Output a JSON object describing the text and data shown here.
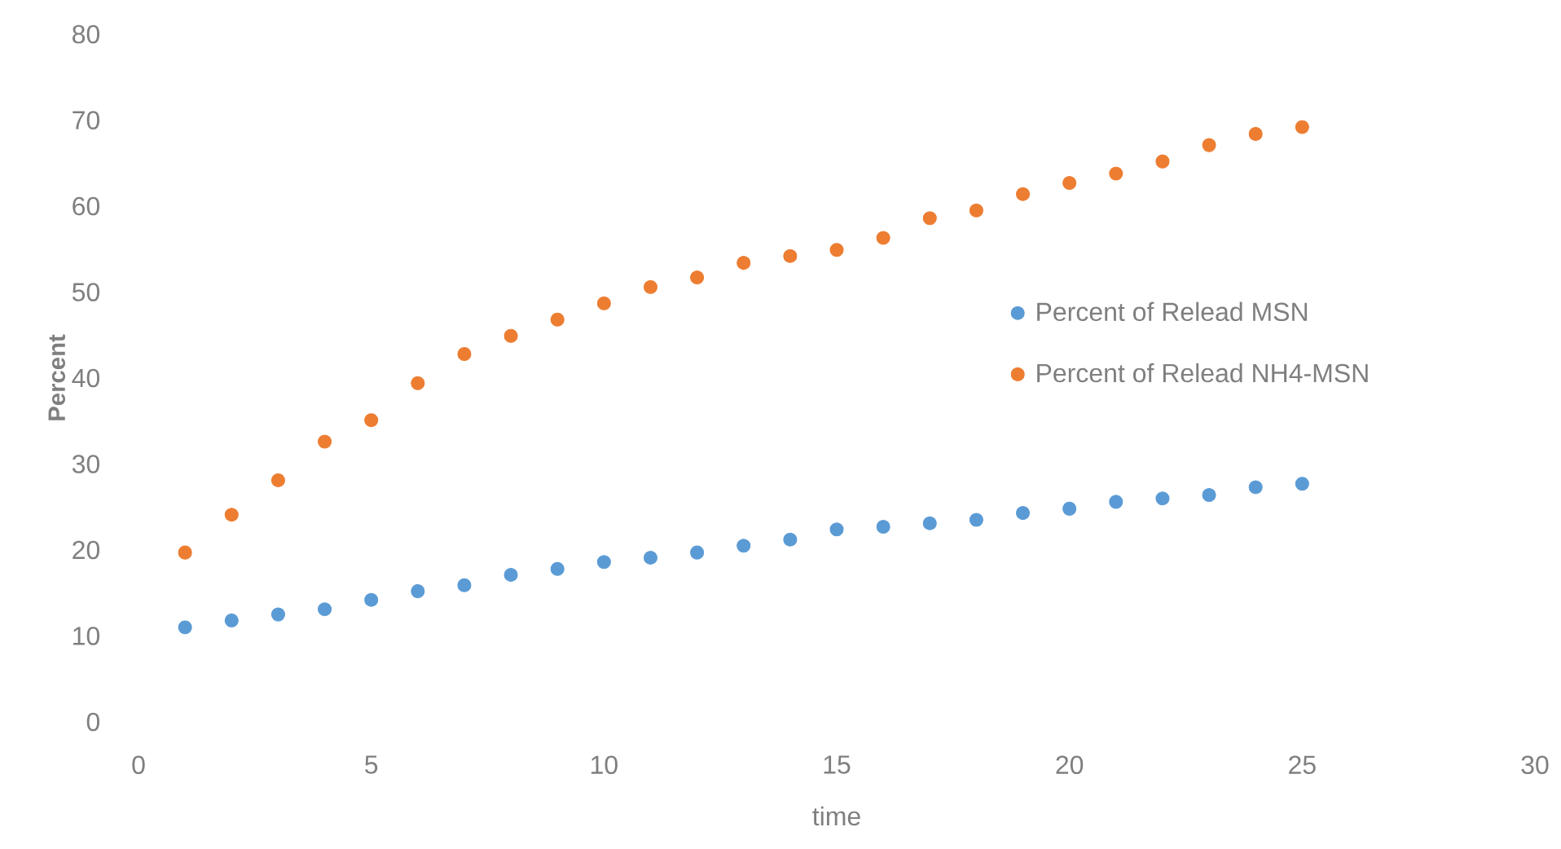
{
  "chart_data": {
    "type": "scatter",
    "xlabel": "time",
    "ylabel": "Percent",
    "xlim": [
      0,
      30
    ],
    "xticks": [
      0,
      5,
      10,
      15,
      20,
      25,
      30
    ],
    "ylim": [
      0,
      80
    ],
    "yticks": [
      0,
      10,
      20,
      30,
      40,
      50,
      60,
      70,
      80
    ],
    "x": [
      1,
      2,
      3,
      4,
      5,
      6,
      7,
      8,
      9,
      10,
      11,
      12,
      13,
      14,
      15,
      16,
      17,
      18,
      19,
      20,
      21,
      22,
      23,
      24,
      25
    ],
    "series": [
      {
        "name": "Percent of Relead MSN",
        "color": "#5b9bd5",
        "values": [
          11.0,
          11.8,
          12.5,
          13.1,
          14.2,
          15.2,
          15.9,
          17.1,
          17.8,
          18.6,
          19.1,
          19.7,
          20.5,
          21.2,
          22.4,
          22.7,
          23.1,
          23.5,
          24.3,
          24.8,
          25.6,
          26.0,
          26.4,
          27.3,
          27.7
        ]
      },
      {
        "name": "Percent of Relead NH4-MSN",
        "color": "#ed7d31",
        "values": [
          19.7,
          24.1,
          28.1,
          32.6,
          35.1,
          39.4,
          42.8,
          44.9,
          46.8,
          48.7,
          50.6,
          51.7,
          53.4,
          54.2,
          54.9,
          56.3,
          58.6,
          59.5,
          61.4,
          62.7,
          63.8,
          65.2,
          67.1,
          68.4,
          69.2
        ]
      }
    ],
    "marker": "circle",
    "grid": false,
    "legend": "right"
  }
}
